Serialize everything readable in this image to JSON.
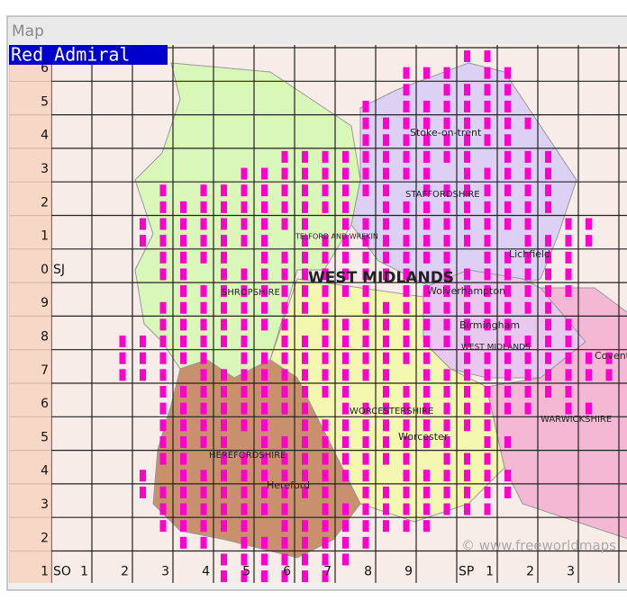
{
  "window": {
    "title": "Map"
  },
  "species": "Red Admiral",
  "row_labels": [
    "6",
    "5",
    "4",
    "3",
    "2",
    "1",
    "0",
    "9",
    "8",
    "7",
    "6",
    "5",
    "4",
    "3",
    "2",
    "1"
  ],
  "grid_letters": {
    "north": "SJ",
    "south_west": "SO",
    "south_east": "SP"
  },
  "column_labels": [
    "1",
    "2",
    "3",
    "4",
    "5",
    "6",
    "7",
    "8",
    "9",
    "",
    "1",
    "2",
    "3"
  ],
  "map_labels": {
    "stoke": "Stoke-on-trent",
    "staffordshire": "STAFFORDSHIRE",
    "telford": "TELFORD AND WREKIN",
    "west_midlands_region": "WEST MIDLANDS",
    "shropshire": "SHROPSHIRE",
    "wolverhampton": "Wolverhampton",
    "birmingham": "Birmingham",
    "west_midlands_county": "WEST MIDLANDS",
    "lichfield": "Lichfield",
    "coventry": "Coventry",
    "worcestershire": "WORCESTERSHIRE",
    "worcester": "Worcester",
    "herefordshire": "HEREFORDSHIRE",
    "hereford": "Hereford",
    "warwickshire": "WARWICKSHIRE",
    "credit": "© www.freeworldmaps"
  }
}
